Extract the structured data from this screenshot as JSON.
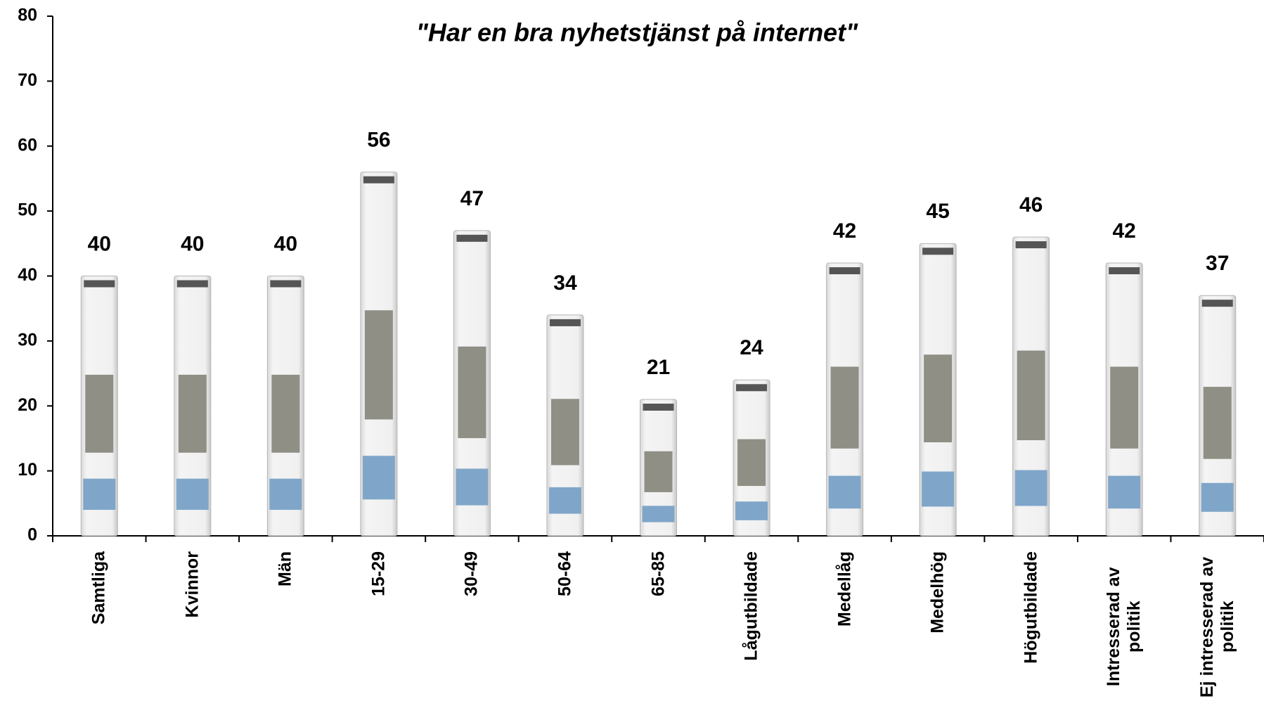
{
  "chart_data": {
    "type": "bar",
    "title": "\"Har en bra nyhetstjänst på internet\"",
    "categories": [
      "Samtliga",
      "Kvinnor",
      "Män",
      "15-29",
      "30-49",
      "50-64",
      "65-85",
      "Lågutbildade",
      "Medellåg",
      "Medelhög",
      "Högutbildade",
      "Intresserad av politik",
      "Ej intresserad av politik"
    ],
    "values": [
      40,
      40,
      40,
      56,
      47,
      34,
      21,
      24,
      42,
      45,
      46,
      42,
      37
    ],
    "ylim": [
      0,
      80
    ],
    "yticks": [
      0,
      10,
      20,
      30,
      40,
      50,
      60,
      70,
      80
    ]
  }
}
